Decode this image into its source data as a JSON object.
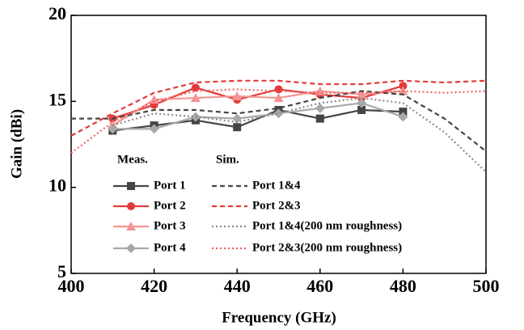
{
  "chart_data": {
    "type": "line",
    "x_label": "Frequency (GHz)",
    "y_label": "Gain (dBi)",
    "xlim": [
      400,
      500
    ],
    "ylim": [
      5,
      20
    ],
    "xticks": [
      400,
      420,
      440,
      460,
      480,
      500
    ],
    "yticks": [
      5,
      10,
      15,
      20
    ],
    "groups": [
      {
        "name": "Meas.",
        "series": [
          {
            "name": "Port 1",
            "color": "#454545",
            "dash": "solid",
            "marker": "square",
            "x": [
              410,
              420,
              430,
              440,
              450,
              460,
              470,
              480
            ],
            "values": [
              13.3,
              13.6,
              13.9,
              13.5,
              14.5,
              14.0,
              14.5,
              14.4
            ]
          },
          {
            "name": "Port 2",
            "color": "#e23a3a",
            "dash": "solid",
            "marker": "circle",
            "x": [
              410,
              420,
              430,
              440,
              450,
              460,
              470,
              480
            ],
            "values": [
              14.0,
              14.8,
              15.8,
              15.1,
              15.7,
              15.4,
              15.2,
              15.9
            ]
          },
          {
            "name": "Port 3",
            "color": "#f49494",
            "dash": "solid",
            "marker": "triangle",
            "x": [
              410,
              420,
              430,
              440,
              450,
              460,
              470,
              480
            ],
            "values": [
              13.6,
              15.1,
              15.2,
              15.3,
              15.2,
              15.6,
              15.4,
              15.6
            ]
          },
          {
            "name": "Port 4",
            "color": "#a8a8a8",
            "dash": "solid",
            "marker": "diamond",
            "x": [
              410,
              420,
              430,
              440,
              450,
              460,
              470,
              480
            ],
            "values": [
              13.4,
              13.4,
              14.1,
              14.0,
              14.3,
              14.6,
              14.9,
              14.1
            ]
          }
        ]
      },
      {
        "name": "Sim.",
        "series": [
          {
            "name": "Port 1&4",
            "color": "#454545",
            "dash": "dashed",
            "x": [
              400,
              410,
              420,
              430,
              440,
              450,
              460,
              470,
              480,
              490,
              500
            ],
            "values": [
              14.0,
              14.0,
              14.5,
              14.5,
              14.3,
              14.6,
              15.2,
              15.6,
              15.4,
              14.0,
              12.1
            ]
          },
          {
            "name": "Port 2&3",
            "color": "#e23a3a",
            "dash": "dashed",
            "x": [
              400,
              410,
              420,
              430,
              440,
              450,
              460,
              470,
              480,
              490,
              500
            ],
            "values": [
              13.0,
              14.3,
              15.5,
              16.1,
              16.2,
              16.2,
              16.0,
              16.0,
              16.2,
              16.1,
              16.2
            ]
          },
          {
            "name": "Port 1&4(200 nm roughness)",
            "color": "#8a8a8a",
            "dash": "dotted",
            "x": [
              410,
              420,
              430,
              440,
              450,
              460,
              470,
              480,
              490,
              500
            ],
            "values": [
              13.6,
              14.3,
              14.1,
              13.8,
              14.3,
              14.9,
              15.2,
              14.9,
              13.2,
              10.9
            ]
          },
          {
            "name": "Port 2&3(200 nm roughness)",
            "color": "#f26060",
            "dash": "dotted",
            "x": [
              400,
              410,
              420,
              430,
              440,
              450,
              460,
              470,
              480,
              490,
              500
            ],
            "values": [
              12.0,
              13.8,
              15.0,
              15.6,
              15.7,
              15.6,
              15.5,
              15.5,
              15.6,
              15.5,
              15.6
            ]
          }
        ]
      }
    ]
  }
}
